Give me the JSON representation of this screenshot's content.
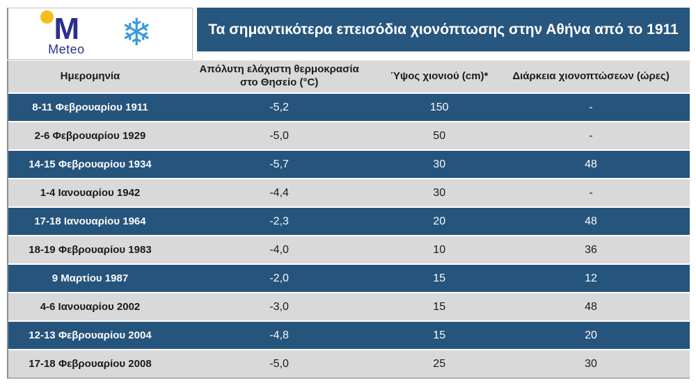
{
  "logo": {
    "brand": "Meteo",
    "monogram": "M",
    "snowflake_char": "❄"
  },
  "title": "Τα σημαντικότερα επεισόδια χιονόπτωσης στην Αθήνα από το 1911",
  "colors": {
    "band_blue": "#27567F",
    "row_blue": "#25547D",
    "row_gray": "#D9D9D9",
    "logo_navy": "#2B2F8C",
    "logo_yellow": "#F2BD1D",
    "snowflake_blue": "#3A9BDE"
  },
  "table": {
    "headers": [
      "Ημερομηνία",
      "Απόλυτη ελάχιστη θερμοκρασία στο Θησείο (°C)",
      "Ύψος χιονιού (cm)*",
      "Διάρκεια χιονοπτώσεων (ώρες)"
    ],
    "rows": [
      [
        "8-11 Φεβρουαρίου 1911",
        "-5,2",
        "150",
        "-"
      ],
      [
        "2-6 Φεβρουαρίου 1929",
        "-5,0",
        "50",
        "-"
      ],
      [
        "14-15 Φεβρουαρίου 1934",
        "-5,7",
        "30",
        "48"
      ],
      [
        "1-4 Ιανουαρίου 1942",
        "-4,4",
        "30",
        "-"
      ],
      [
        "17-18 Ιανουαρίου 1964",
        "-2,3",
        "20",
        "48"
      ],
      [
        "18-19 Φεβρουαρίου 1983",
        "-4,0",
        "10",
        "36"
      ],
      [
        "9 Μαρτίου 1987",
        "-2,0",
        "15",
        "12"
      ],
      [
        "4-6 Ιανουαρίου 2002",
        "-3,0",
        "15",
        "48"
      ],
      [
        "12-13 Φεβρουαρίου 2004",
        "-4,8",
        "15",
        "20"
      ],
      [
        "17-18 Φεβρουαρίου 2008",
        "-5,0",
        "25",
        "30"
      ]
    ]
  },
  "chart_data": {
    "type": "table",
    "title": "Τα σημαντικότερα επεισόδια χιονόπτωσης στην Αθήνα από το 1911",
    "columns": [
      "Ημερομηνία",
      "Απόλυτη ελάχιστη θερμοκρασία στο Θησείο (°C)",
      "Ύψος χιονιού (cm)*",
      "Διάρκεια χιονοπτώσεων (ώρες)"
    ],
    "rows": [
      [
        "8-11 Φεβρουαρίου 1911",
        -5.2,
        150,
        null
      ],
      [
        "2-6 Φεβρουαρίου 1929",
        -5.0,
        50,
        null
      ],
      [
        "14-15 Φεβρουαρίου 1934",
        -5.7,
        30,
        48
      ],
      [
        "1-4 Ιανουαρίου 1942",
        -4.4,
        30,
        null
      ],
      [
        "17-18 Ιανουαρίου 1964",
        -2.3,
        20,
        48
      ],
      [
        "18-19 Φεβρουαρίου 1983",
        -4.0,
        10,
        36
      ],
      [
        "9 Μαρτίου 1987",
        -2.0,
        15,
        12
      ],
      [
        "4-6 Ιανουαρίου 2002",
        -3.0,
        15,
        48
      ],
      [
        "12-13 Φεβρουαρίου 2004",
        -4.8,
        15,
        20
      ],
      [
        "17-18 Φεβρουαρίου 2008",
        -5.0,
        25,
        30
      ]
    ]
  }
}
